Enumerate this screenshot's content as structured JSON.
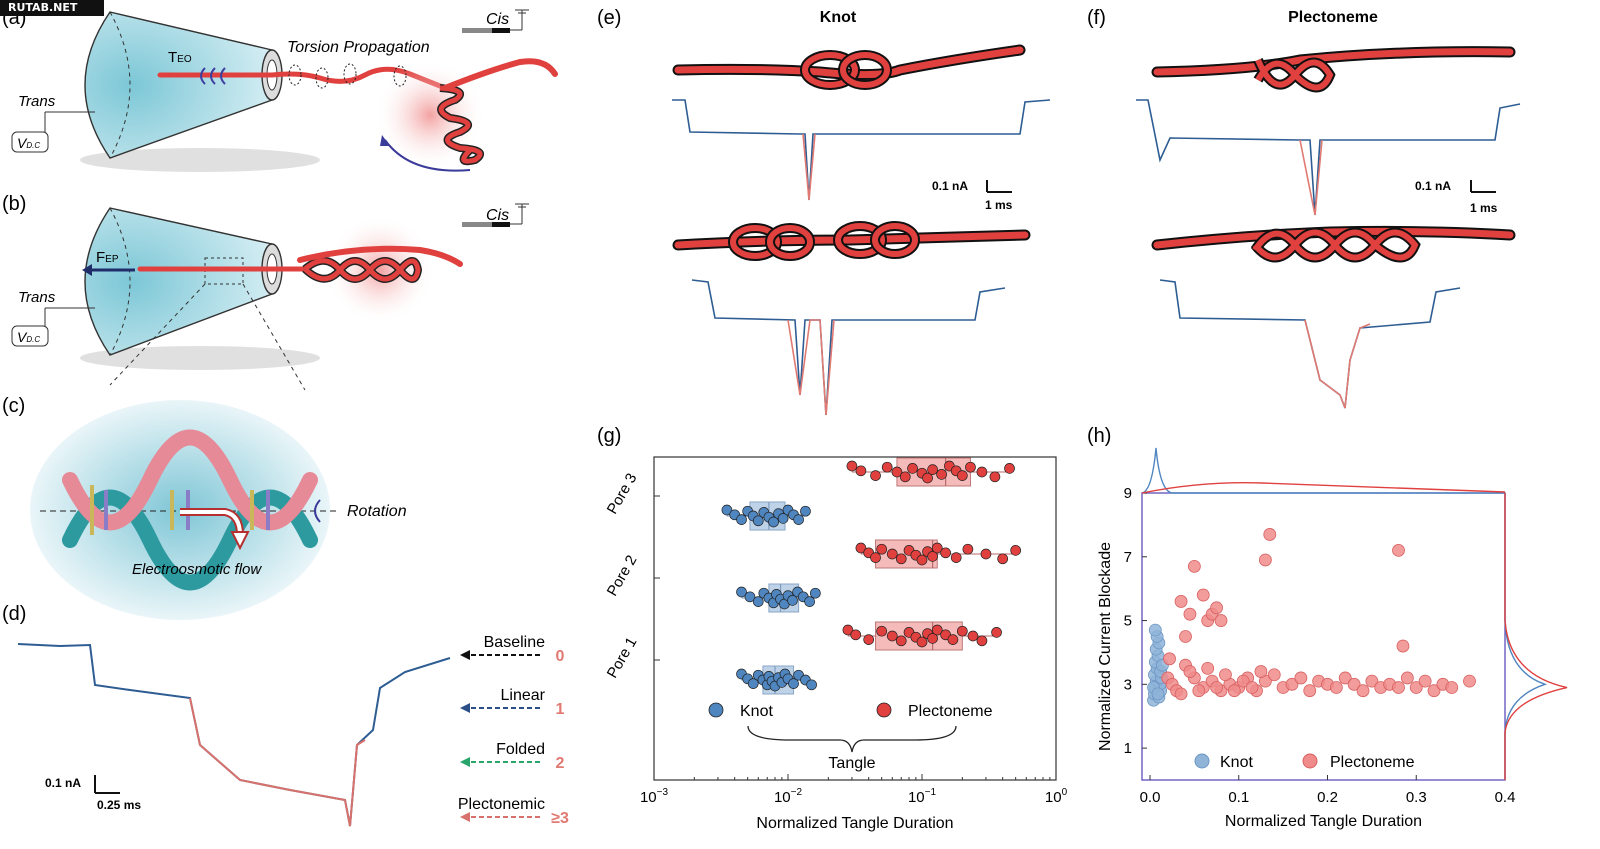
{
  "watermark": "RUTAB.NET",
  "panels": {
    "a": {
      "letter": "(a)",
      "trans": "Trans",
      "v_main": "V",
      "v_sub": "D.C",
      "teo_main": "T",
      "teo_sub": "EO",
      "torsion": "Torsion Propagation",
      "cis": "Cis"
    },
    "b": {
      "letter": "(b)",
      "trans": "Trans",
      "v_main": "V",
      "v_sub": "D.C",
      "fep_main": "F",
      "fep_sub": "EP",
      "cis": "Cis"
    },
    "c": {
      "letter": "(c)",
      "rotation": "Rotation",
      "flow": "Electroosmotic flow"
    },
    "d": {
      "letter": "(d)",
      "scale_current": "0.1 nA",
      "scale_time": "0.25 ms",
      "levels": [
        {
          "label": "Baseline",
          "value": "0",
          "color": "#111111",
          "num_color": "#e07a72"
        },
        {
          "label": "Linear",
          "value": "1",
          "color": "#2b4f86",
          "num_color": "#e07a72"
        },
        {
          "label": "Folded",
          "value": "2",
          "color": "#27a56a",
          "num_color": "#e07a72"
        },
        {
          "label": "Plectonemic",
          "value": "≥3",
          "color": "#d8716c",
          "num_color": "#e07a72"
        }
      ]
    },
    "e": {
      "letter": "(e)",
      "title": "Knot",
      "scale_current": "0.1 nA",
      "scale_time": "1 ms"
    },
    "f": {
      "letter": "(f)",
      "title": "Plectoneme",
      "scale_current": "0.1 nA",
      "scale_time": "1 ms"
    },
    "g": {
      "letter": "(g)",
      "legend_knot": "Knot",
      "legend_plectoneme": "Plectoneme",
      "brace_label": "Tangle"
    },
    "h": {
      "letter": "(h)",
      "legend_knot": "Knot",
      "legend_plectoneme": "Plectoneme"
    }
  },
  "colors": {
    "knot": "#4f86c0",
    "plectoneme": "#e0413f",
    "dna": "#e0413f",
    "trace": "#2e5d93",
    "trace_event": "#e07a72",
    "pore_fill": "#a9dbe6"
  },
  "chart_data": [
    {
      "panel": "g",
      "type": "scatter",
      "subtype": "box-strip",
      "xlabel": "Normalized Tangle Duration",
      "ylabel": "",
      "xscale": "log",
      "xlim": [
        0.001,
        1
      ],
      "xticks": [
        "10^-3",
        "10^-2",
        "10^-1",
        "10^0"
      ],
      "categories": [
        "Pore 1",
        "Pore 2",
        "Pore 3"
      ],
      "legend_placement": "lower-center",
      "series": [
        {
          "name": "Knot",
          "color": "#4f86c0",
          "boxes": [
            {
              "category": "Pore 1",
              "q1": 0.0065,
              "median": 0.008,
              "q3": 0.011,
              "whisker_low": 0.0045,
              "whisker_high": 0.015
            },
            {
              "category": "Pore 2",
              "q1": 0.0072,
              "median": 0.0088,
              "q3": 0.012,
              "whisker_low": 0.0045,
              "whisker_high": 0.016
            },
            {
              "category": "Pore 3",
              "q1": 0.0052,
              "median": 0.0072,
              "q3": 0.0095,
              "whisker_low": 0.0035,
              "whisker_high": 0.014
            }
          ],
          "points": [
            {
              "category": "Pore 1",
              "x": [
                0.0045,
                0.005,
                0.0055,
                0.006,
                0.0065,
                0.007,
                0.0072,
                0.0076,
                0.008,
                0.0085,
                0.009,
                0.0095,
                0.01,
                0.011,
                0.012,
                0.0135,
                0.015
              ]
            },
            {
              "category": "Pore 2",
              "x": [
                0.0045,
                0.0052,
                0.006,
                0.0066,
                0.0072,
                0.0078,
                0.0082,
                0.0088,
                0.0094,
                0.01,
                0.0108,
                0.0118,
                0.013,
                0.0145,
                0.016
              ]
            },
            {
              "category": "Pore 3",
              "x": [
                0.0035,
                0.004,
                0.0045,
                0.005,
                0.0055,
                0.006,
                0.0066,
                0.0072,
                0.0078,
                0.0085,
                0.0092,
                0.01,
                0.011,
                0.012,
                0.0135
              ]
            }
          ]
        },
        {
          "name": "Plectoneme",
          "color": "#e0413f",
          "boxes": [
            {
              "category": "Pore 1",
              "q1": 0.045,
              "median": 0.12,
              "q3": 0.2,
              "whisker_low": 0.028,
              "whisker_high": 0.36
            },
            {
              "category": "Pore 2",
              "q1": 0.045,
              "median": 0.12,
              "q3": 0.13,
              "whisker_low": 0.035,
              "whisker_high": 0.5
            },
            {
              "category": "Pore 3",
              "q1": 0.065,
              "median": 0.15,
              "q3": 0.23,
              "whisker_low": 0.03,
              "whisker_high": 0.45
            }
          ],
          "points": [
            {
              "category": "Pore 1",
              "x": [
                0.028,
                0.032,
                0.04,
                0.05,
                0.06,
                0.07,
                0.08,
                0.09,
                0.1,
                0.11,
                0.12,
                0.13,
                0.15,
                0.17,
                0.2,
                0.24,
                0.28,
                0.36
              ]
            },
            {
              "category": "Pore 2",
              "x": [
                0.035,
                0.04,
                0.045,
                0.05,
                0.06,
                0.07,
                0.08,
                0.09,
                0.1,
                0.11,
                0.12,
                0.13,
                0.15,
                0.18,
                0.22,
                0.3,
                0.4,
                0.5
              ]
            },
            {
              "category": "Pore 3",
              "x": [
                0.03,
                0.035,
                0.045,
                0.055,
                0.065,
                0.075,
                0.085,
                0.1,
                0.11,
                0.12,
                0.14,
                0.16,
                0.18,
                0.2,
                0.23,
                0.28,
                0.35,
                0.45
              ]
            }
          ]
        }
      ]
    },
    {
      "panel": "h",
      "type": "scatter",
      "xlabel": "Normalized Tangle Duration",
      "ylabel": "Normalized Current Blockade",
      "xlim": [
        0,
        0.4
      ],
      "ylim": [
        0,
        9
      ],
      "xticks": [
        0.0,
        0.1,
        0.2,
        0.3,
        0.4
      ],
      "yticks": [
        1,
        3,
        5,
        7,
        9
      ],
      "legend_placement": "bottom-left",
      "marginal_density": true,
      "series": [
        {
          "name": "Knot",
          "color": "#8fb4d8",
          "points": [
            [
              0.004,
              2.5
            ],
            [
              0.005,
              2.7
            ],
            [
              0.006,
              2.9
            ],
            [
              0.007,
              3.1
            ],
            [
              0.005,
              3.3
            ],
            [
              0.008,
              3.5
            ],
            [
              0.006,
              3.7
            ],
            [
              0.009,
              3.9
            ],
            [
              0.007,
              4.1
            ],
            [
              0.01,
              4.3
            ],
            [
              0.008,
              4.5
            ],
            [
              0.006,
              4.7
            ],
            [
              0.01,
              2.6
            ],
            [
              0.012,
              2.8
            ],
            [
              0.011,
              3.0
            ],
            [
              0.013,
              3.2
            ],
            [
              0.012,
              3.4
            ],
            [
              0.014,
              3.6
            ],
            [
              0.004,
              2.9
            ],
            [
              0.009,
              2.7
            ]
          ]
        },
        {
          "name": "Plectoneme",
          "color": "#f08b8b",
          "points": [
            [
              0.02,
              3.2
            ],
            [
              0.022,
              3.8
            ],
            [
              0.025,
              3.0
            ],
            [
              0.03,
              2.8
            ],
            [
              0.035,
              5.6
            ],
            [
              0.04,
              4.5
            ],
            [
              0.045,
              5.2
            ],
            [
              0.05,
              6.7
            ],
            [
              0.06,
              5.8
            ],
            [
              0.065,
              5.0
            ],
            [
              0.07,
              5.2
            ],
            [
              0.075,
              5.4
            ],
            [
              0.08,
              5.0
            ],
            [
              0.13,
              6.9
            ],
            [
              0.135,
              7.7
            ],
            [
              0.28,
              7.2
            ],
            [
              0.285,
              4.2
            ],
            [
              0.04,
              3.6
            ],
            [
              0.05,
              3.2
            ],
            [
              0.06,
              2.9
            ],
            [
              0.07,
              3.1
            ],
            [
              0.08,
              2.8
            ],
            [
              0.09,
              3.0
            ],
            [
              0.1,
              2.9
            ],
            [
              0.11,
              3.2
            ],
            [
              0.12,
              2.8
            ],
            [
              0.13,
              3.1
            ],
            [
              0.14,
              3.3
            ],
            [
              0.15,
              2.9
            ],
            [
              0.16,
              3.0
            ],
            [
              0.17,
              3.2
            ],
            [
              0.18,
              2.8
            ],
            [
              0.19,
              3.1
            ],
            [
              0.2,
              3.0
            ],
            [
              0.21,
              2.9
            ],
            [
              0.22,
              3.2
            ],
            [
              0.23,
              3.0
            ],
            [
              0.24,
              2.8
            ],
            [
              0.25,
              3.1
            ],
            [
              0.26,
              2.9
            ],
            [
              0.27,
              3.0
            ],
            [
              0.28,
              2.9
            ],
            [
              0.29,
              3.2
            ],
            [
              0.3,
              2.9
            ],
            [
              0.31,
              3.1
            ],
            [
              0.32,
              2.8
            ],
            [
              0.33,
              3.0
            ],
            [
              0.34,
              2.9
            ],
            [
              0.36,
              3.1
            ],
            [
              0.035,
              2.7
            ],
            [
              0.045,
              3.4
            ],
            [
              0.055,
              2.8
            ],
            [
              0.065,
              3.5
            ],
            [
              0.075,
              2.9
            ],
            [
              0.085,
              3.3
            ],
            [
              0.095,
              2.8
            ],
            [
              0.105,
              3.1
            ],
            [
              0.115,
              2.9
            ],
            [
              0.125,
              3.4
            ]
          ]
        }
      ]
    }
  ]
}
